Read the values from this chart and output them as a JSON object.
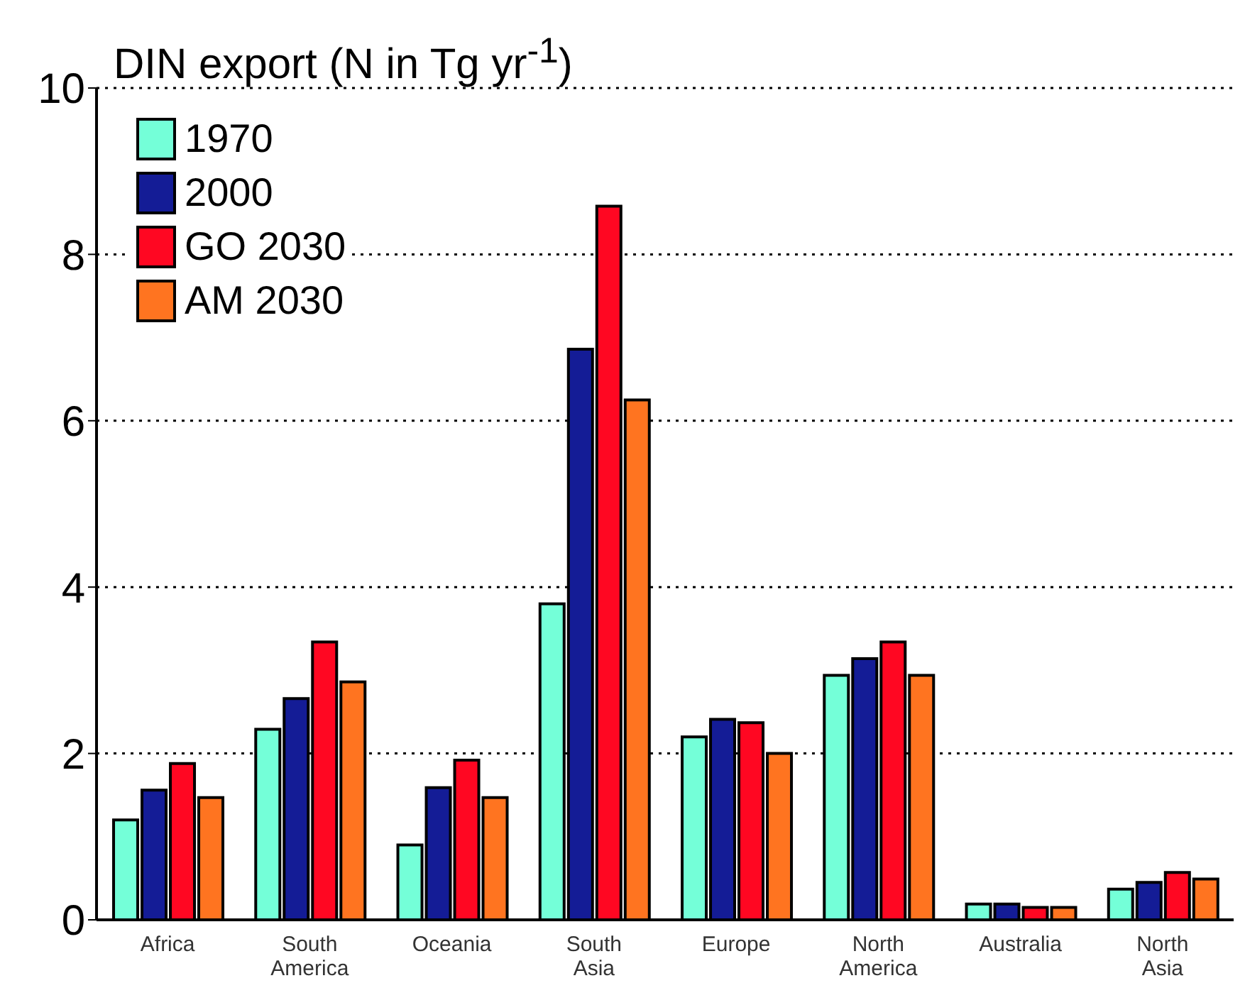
{
  "chart_data": {
    "type": "bar",
    "title": "DIN export (N in Tg yr$^{-1}$)",
    "categories": [
      "Africa",
      "South America",
      "Oceania",
      "South Asia",
      "Europe",
      "North America",
      "Australia",
      "North Asia"
    ],
    "series": [
      {
        "name": "1970",
        "color": "#74ffd8",
        "values": [
          1.2,
          2.29,
          0.9,
          3.8,
          2.2,
          2.94,
          0.19,
          0.37
        ]
      },
      {
        "name": "2000",
        "color": "#141c96",
        "values": [
          1.56,
          2.66,
          1.59,
          6.86,
          2.41,
          3.14,
          0.19,
          0.45
        ]
      },
      {
        "name": "GO 2030",
        "color": "#ff0722",
        "values": [
          1.88,
          3.34,
          1.92,
          8.58,
          2.37,
          3.34,
          0.15,
          0.57
        ]
      },
      {
        "name": "AM 2030",
        "color": "#ff7420",
        "values": [
          1.47,
          2.86,
          1.47,
          6.25,
          2.0,
          2.94,
          0.15,
          0.49
        ]
      }
    ],
    "ylim": [
      0,
      10
    ],
    "yticks": [
      0,
      2,
      4,
      6,
      8,
      10
    ],
    "grid": "y",
    "legend": "top left"
  }
}
